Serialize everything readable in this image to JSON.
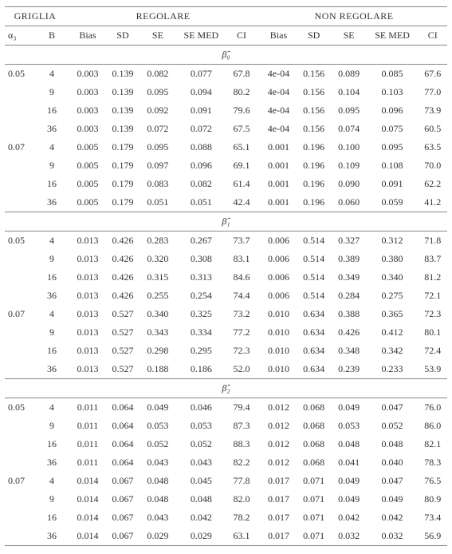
{
  "colors": {
    "background": "#ffffff",
    "text": "#333333",
    "rule": "#888888"
  },
  "typography": {
    "font_family": "Times New Roman",
    "font_size_pt": 9,
    "header_font_size_pt": 9
  },
  "headers": {
    "griglia": "GRIGLIA",
    "regolare": "REGOLARE",
    "non_regolare": "NON REGOLARE",
    "alpha": "α₃",
    "B": "B",
    "Bias": "Bias",
    "SD": "SD",
    "SE": "SE",
    "SE_MED": "SE MED",
    "CI": "CI"
  },
  "sections": [
    {
      "label": "β̂₀",
      "rows": [
        {
          "alpha": "0.05",
          "B": "4",
          "r": [
            "0.003",
            "0.139",
            "0.082",
            "0.077",
            "67.8"
          ],
          "n": [
            "4e-04",
            "0.156",
            "0.089",
            "0.085",
            "67.6"
          ]
        },
        {
          "alpha": "",
          "B": "9",
          "r": [
            "0.003",
            "0.139",
            "0.095",
            "0.094",
            "80.2"
          ],
          "n": [
            "4e-04",
            "0.156",
            "0.104",
            "0.103",
            "77.0"
          ]
        },
        {
          "alpha": "",
          "B": "16",
          "r": [
            "0.003",
            "0.139",
            "0.092",
            "0.091",
            "79.6"
          ],
          "n": [
            "4e-04",
            "0.156",
            "0.095",
            "0.096",
            "73.9"
          ]
        },
        {
          "alpha": "",
          "B": "36",
          "r": [
            "0.003",
            "0.139",
            "0.072",
            "0.072",
            "67.5"
          ],
          "n": [
            "4e-04",
            "0.156",
            "0.074",
            "0.075",
            "60.5"
          ]
        },
        {
          "alpha": "0.07",
          "B": "4",
          "r": [
            "0.005",
            "0.179",
            "0.095",
            "0.088",
            "65.1"
          ],
          "n": [
            "0.001",
            "0.196",
            "0.100",
            "0.095",
            "63.5"
          ]
        },
        {
          "alpha": "",
          "B": "9",
          "r": [
            "0.005",
            "0.179",
            "0.097",
            "0.096",
            "69.1"
          ],
          "n": [
            "0.001",
            "0.196",
            "0.109",
            "0.108",
            "70.0"
          ]
        },
        {
          "alpha": "",
          "B": "16",
          "r": [
            "0.005",
            "0.179",
            "0.083",
            "0.082",
            "61.4"
          ],
          "n": [
            "0.001",
            "0.196",
            "0.090",
            "0.091",
            "62.2"
          ]
        },
        {
          "alpha": "",
          "B": "36",
          "r": [
            "0.005",
            "0.179",
            "0.051",
            "0.051",
            "42.4"
          ],
          "n": [
            "0.001",
            "0.196",
            "0.060",
            "0.059",
            "41.2"
          ]
        }
      ]
    },
    {
      "label": "β̂₁",
      "rows": [
        {
          "alpha": "0.05",
          "B": "4",
          "r": [
            "0.013",
            "0.426",
            "0.283",
            "0.267",
            "73.7"
          ],
          "n": [
            "0.006",
            "0.514",
            "0.327",
            "0.312",
            "71.8"
          ]
        },
        {
          "alpha": "",
          "B": "9",
          "r": [
            "0.013",
            "0.426",
            "0.320",
            "0.308",
            "83.1"
          ],
          "n": [
            "0.006",
            "0.514",
            "0.389",
            "0.380",
            "83.7"
          ]
        },
        {
          "alpha": "",
          "B": "16",
          "r": [
            "0.013",
            "0.426",
            "0.315",
            "0.313",
            "84.6"
          ],
          "n": [
            "0.006",
            "0.514",
            "0.349",
            "0.340",
            "81.2"
          ]
        },
        {
          "alpha": "",
          "B": "36",
          "r": [
            "0.013",
            "0.426",
            "0.255",
            "0.254",
            "74.4"
          ],
          "n": [
            "0.006",
            "0.514",
            "0.284",
            "0.275",
            "72.1"
          ]
        },
        {
          "alpha": "0.07",
          "B": "4",
          "r": [
            "0.013",
            "0.527",
            "0.340",
            "0.325",
            "73.2"
          ],
          "n": [
            "0.010",
            "0.634",
            "0.388",
            "0.365",
            "72.3"
          ]
        },
        {
          "alpha": "",
          "B": "9",
          "r": [
            "0.013",
            "0.527",
            "0.343",
            "0.334",
            "77.2"
          ],
          "n": [
            "0.010",
            "0.634",
            "0.426",
            "0.412",
            "80.1"
          ]
        },
        {
          "alpha": "",
          "B": "16",
          "r": [
            "0.013",
            "0.527",
            "0.298",
            "0.295",
            "72.3"
          ],
          "n": [
            "0.010",
            "0.634",
            "0.348",
            "0.342",
            "72.4"
          ]
        },
        {
          "alpha": "",
          "B": "36",
          "r": [
            "0.013",
            "0.527",
            "0.188",
            "0.186",
            "52.0"
          ],
          "n": [
            "0.010",
            "0.634",
            "0.239",
            "0.233",
            "53.9"
          ]
        }
      ]
    },
    {
      "label": "β̂₂",
      "rows": [
        {
          "alpha": "0.05",
          "B": "4",
          "r": [
            "0.011",
            "0.064",
            "0.049",
            "0.046",
            "79.4"
          ],
          "n": [
            "0.012",
            "0.068",
            "0.049",
            "0.047",
            "76.0"
          ]
        },
        {
          "alpha": "",
          "B": "9",
          "r": [
            "0.011",
            "0.064",
            "0.053",
            "0.053",
            "87.3"
          ],
          "n": [
            "0.012",
            "0.068",
            "0.053",
            "0.052",
            "86.0"
          ]
        },
        {
          "alpha": "",
          "B": "16",
          "r": [
            "0.011",
            "0.064",
            "0.052",
            "0.052",
            "88.3"
          ],
          "n": [
            "0.012",
            "0.068",
            "0.048",
            "0.048",
            "82.1"
          ]
        },
        {
          "alpha": "",
          "B": "36",
          "r": [
            "0.011",
            "0.064",
            "0.043",
            "0.043",
            "82.2"
          ],
          "n": [
            "0.012",
            "0.068",
            "0.041",
            "0.040",
            "78.3"
          ]
        },
        {
          "alpha": "0.07",
          "B": "4",
          "r": [
            "0.014",
            "0.067",
            "0.048",
            "0.045",
            "77.8"
          ],
          "n": [
            "0.017",
            "0.071",
            "0.049",
            "0.047",
            "76.5"
          ]
        },
        {
          "alpha": "",
          "B": "9",
          "r": [
            "0.014",
            "0.067",
            "0.048",
            "0.048",
            "82.0"
          ],
          "n": [
            "0.017",
            "0.071",
            "0.049",
            "0.049",
            "80.9"
          ]
        },
        {
          "alpha": "",
          "B": "16",
          "r": [
            "0.014",
            "0.067",
            "0.043",
            "0.042",
            "78.2"
          ],
          "n": [
            "0.017",
            "0.071",
            "0.042",
            "0.042",
            "73.4"
          ]
        },
        {
          "alpha": "",
          "B": "36",
          "r": [
            "0.014",
            "0.067",
            "0.029",
            "0.029",
            "63.1"
          ],
          "n": [
            "0.017",
            "0.071",
            "0.032",
            "0.032",
            "56.9"
          ]
        }
      ]
    }
  ]
}
